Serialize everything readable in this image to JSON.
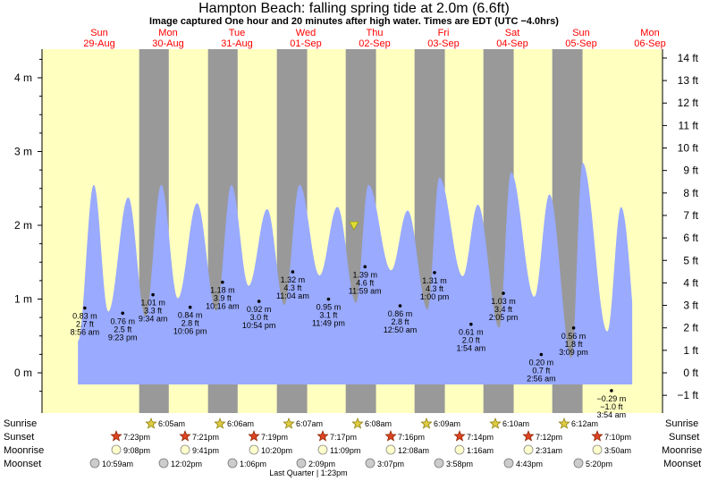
{
  "title": "Hampton Beach: falling  spring tide at 2.0m (6.6ft)",
  "subtitle": "Image captured One hour and 20 minutes after high water. Times are EDT (UTC −4.0hrs)",
  "days": [
    {
      "dow": "Sun",
      "date": "29-Aug"
    },
    {
      "dow": "Mon",
      "date": "30-Aug"
    },
    {
      "dow": "Tue",
      "date": "31-Aug"
    },
    {
      "dow": "Wed",
      "date": "01-Sep"
    },
    {
      "dow": "Thu",
      "date": "02-Sep"
    },
    {
      "dow": "Fri",
      "date": "03-Sep"
    },
    {
      "dow": "Sat",
      "date": "04-Sep"
    },
    {
      "dow": "Sun",
      "date": "05-Sep"
    },
    {
      "dow": "Mon",
      "date": "06-Sep"
    }
  ],
  "chart_data": {
    "type": "area",
    "title": "Hampton Beach: falling  spring tide at 2.0m (6.6ft)",
    "left_axis": {
      "unit": "m",
      "ticks": [
        "0 m",
        "1 m",
        "2 m",
        "3 m",
        "4 m"
      ],
      "range": [
        -0.45,
        4.35
      ]
    },
    "right_axis": {
      "unit": "ft",
      "ticks": [
        "−1 ft",
        "0 ft",
        "1 ft",
        "2 ft",
        "3 ft",
        "4 ft",
        "5 ft",
        "6 ft",
        "7 ft",
        "8 ft",
        "9 ft",
        "10 ft",
        "11 ft",
        "12 ft",
        "13 ft",
        "14 ft"
      ]
    },
    "x_range_days": [
      -0.52,
      8.0
    ],
    "current_level_m": 2.0,
    "current_time_day": 3.96,
    "tide_extremes": [
      {
        "d": -0.05,
        "h": 0.43,
        "type": "low"
      },
      {
        "d": 0.18,
        "h": 2.55,
        "type": "high"
      },
      {
        "d": 0.39,
        "h": 0.83,
        "type": "low"
      },
      {
        "d": 0.68,
        "h": 2.38,
        "type": "high"
      },
      {
        "d": 0.93,
        "h": 0.76,
        "type": "low"
      },
      {
        "d": 1.16,
        "h": 2.55,
        "type": "high"
      },
      {
        "d": 1.4,
        "h": 1.01,
        "type": "low"
      },
      {
        "d": 1.68,
        "h": 2.3,
        "type": "high"
      },
      {
        "d": 1.96,
        "h": 0.84,
        "type": "low"
      },
      {
        "d": 2.18,
        "h": 2.55,
        "type": "high"
      },
      {
        "d": 2.43,
        "h": 1.18,
        "type": "low"
      },
      {
        "d": 2.7,
        "h": 2.22,
        "type": "high"
      },
      {
        "d": 2.95,
        "h": 0.92,
        "type": "low"
      },
      {
        "d": 3.17,
        "h": 2.55,
        "type": "high"
      },
      {
        "d": 3.46,
        "h": 1.32,
        "type": "low"
      },
      {
        "d": 3.72,
        "h": 2.25,
        "type": "high"
      },
      {
        "d": 3.99,
        "h": 0.95,
        "type": "low"
      },
      {
        "d": 4.17,
        "h": 2.55,
        "type": "high"
      },
      {
        "d": 4.5,
        "h": 1.39,
        "type": "low"
      },
      {
        "d": 4.74,
        "h": 2.2,
        "type": "high"
      },
      {
        "d": 5.03,
        "h": 0.86,
        "type": "low"
      },
      {
        "d": 5.2,
        "h": 2.65,
        "type": "high"
      },
      {
        "d": 5.54,
        "h": 1.31,
        "type": "low"
      },
      {
        "d": 5.76,
        "h": 2.28,
        "type": "high"
      },
      {
        "d": 6.07,
        "h": 0.61,
        "type": "low"
      },
      {
        "d": 6.24,
        "h": 2.72,
        "type": "high"
      },
      {
        "d": 6.58,
        "h": 1.03,
        "type": "low"
      },
      {
        "d": 6.8,
        "h": 2.42,
        "type": "high"
      },
      {
        "d": 7.12,
        "h": 0.2,
        "type": "low"
      },
      {
        "d": 7.28,
        "h": 2.85,
        "type": "high"
      },
      {
        "d": 7.64,
        "h": 0.56,
        "type": "low"
      },
      {
        "d": 7.84,
        "h": 2.25,
        "type": "high"
      },
      {
        "d": 8.16,
        "h": -0.29,
        "type": "low"
      }
    ],
    "annotations": [
      {
        "m": "0.83 m",
        "ft": "2.7 ft",
        "time": "8:56 am",
        "d": 0.05,
        "h": 0.83
      },
      {
        "m": "0.76 m",
        "ft": "2.5 ft",
        "time": "9:23 pm",
        "d": 0.6,
        "h": 0.76
      },
      {
        "m": "1.01 m",
        "ft": "3.3 ft",
        "time": "9:34 am",
        "d": 1.04,
        "h": 1.01
      },
      {
        "m": "0.84 m",
        "ft": "2.8 ft",
        "time": "10:06 pm",
        "d": 1.58,
        "h": 0.84
      },
      {
        "m": "1.18 m",
        "ft": "3.9 ft",
        "time": "10:16 am",
        "d": 2.05,
        "h": 1.18
      },
      {
        "m": "0.92 m",
        "ft": "3.0 ft",
        "time": "10:54 pm",
        "d": 2.58,
        "h": 0.92
      },
      {
        "m": "1.32 m",
        "ft": "4.3 ft",
        "time": "11:04 am",
        "d": 3.07,
        "h": 1.32
      },
      {
        "m": "0.95 m",
        "ft": "3.1 ft",
        "time": "11:49 pm",
        "d": 3.59,
        "h": 0.95
      },
      {
        "m": "1.39 m",
        "ft": "4.6 ft",
        "time": "11:59 am",
        "d": 4.12,
        "h": 1.39
      },
      {
        "m": "0.86 m",
        "ft": "2.8 ft",
        "time": "12:50 am",
        "d": 4.63,
        "h": 0.86
      },
      {
        "m": "1.31 m",
        "ft": "4.3 ft",
        "time": "1:00 pm",
        "d": 5.13,
        "h": 1.31
      },
      {
        "m": "0.61 m",
        "ft": "2.0 ft",
        "time": "1:54 am",
        "d": 5.66,
        "h": 0.61
      },
      {
        "m": "1.03 m",
        "ft": "3.4 ft",
        "time": "2:05 pm",
        "d": 6.13,
        "h": 1.03
      },
      {
        "m": "0.20 m",
        "ft": "0.7 ft",
        "time": "2:56 am",
        "d": 6.68,
        "h": 0.2
      },
      {
        "m": "0.56 m",
        "ft": "1.8 ft",
        "time": "3:09 pm",
        "d": 7.15,
        "h": 0.56
      },
      {
        "m": "−0.29 m",
        "ft": "−1.0 ft",
        "time": "3:54 am",
        "d": 7.7,
        "h": -0.29
      }
    ],
    "night_bands_days": [
      [
        0.84,
        1.27
      ],
      [
        1.84,
        2.27
      ],
      [
        2.84,
        3.28
      ],
      [
        3.84,
        4.28
      ],
      [
        4.84,
        5.28
      ],
      [
        5.84,
        6.28
      ],
      [
        6.84,
        7.28
      ]
    ],
    "colors": {
      "day": "#ffffc0",
      "night": "#999999",
      "water": "#99aaff",
      "marker": "#dddd33"
    }
  },
  "rows": {
    "sunrise_label": "Sunrise",
    "sunset_label": "Sunset",
    "moonrise_label": "Moonrise",
    "moonset_label": "Moonset",
    "sunrise": [
      "6:05am",
      "6:06am",
      "6:07am",
      "6:08am",
      "6:09am",
      "6:10am",
      "6:12am"
    ],
    "sunset": [
      "7:23pm",
      "7:21pm",
      "7:19pm",
      "7:17pm",
      "7:16pm",
      "7:14pm",
      "7:12pm",
      "7:10pm"
    ],
    "moonrise": [
      "9:08pm",
      "9:41pm",
      "10:20pm",
      "11:09pm",
      "12:08am",
      "1:16am",
      "2:31am",
      "3:50am"
    ],
    "moonset": [
      "10:59am",
      "12:02pm",
      "1:06pm",
      "2:09pm",
      "3:07pm",
      "3:58pm",
      "4:43pm",
      "5:20pm"
    ],
    "moon_phase": "Last Quarter | 1:23pm"
  }
}
